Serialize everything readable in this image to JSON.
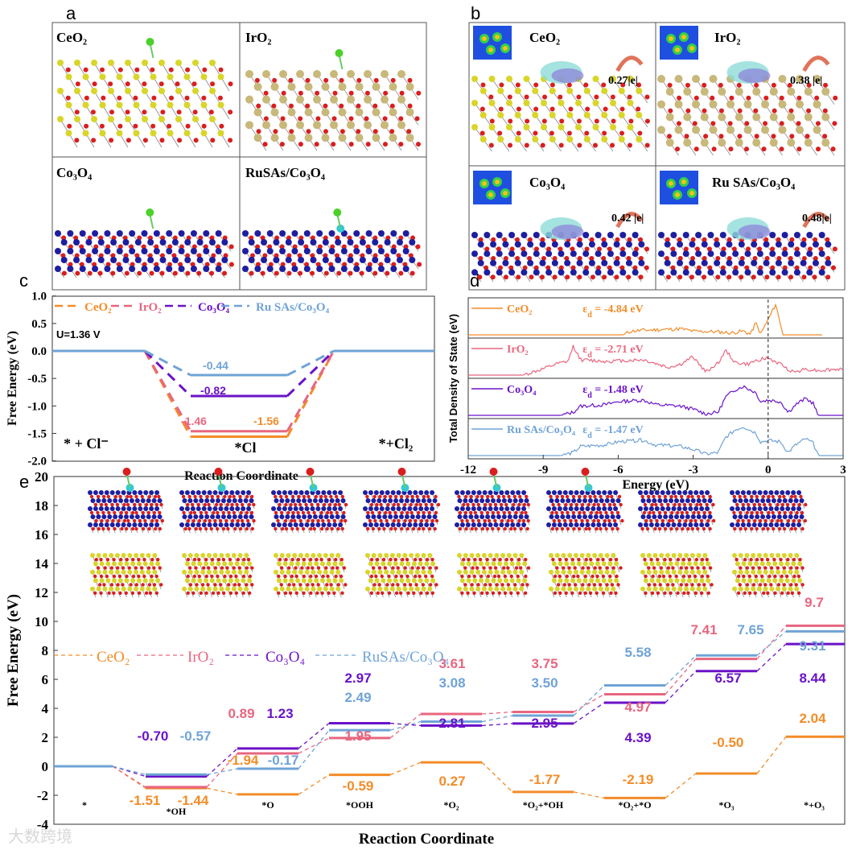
{
  "colors": {
    "CeO2": "#F28C28",
    "IrO2": "#E8667F",
    "Co3O4": "#6A12C8",
    "RuSAs": "#6FA3D6",
    "Ce": "#D9D52A",
    "Ir": "#C8B87A",
    "Co": "#1E1EA0",
    "O": "#D91E1E",
    "Ru": "#35C8D8",
    "Cl": "#4BD12A"
  },
  "panel_labels": [
    "a",
    "b",
    "c",
    "d",
    "e"
  ],
  "panel_a": {
    "titles": [
      "CeO₂",
      "IrO₂",
      "Co₃O₄",
      "RuSAs/Co₃O₄"
    ]
  },
  "panel_b": {
    "titles": [
      "CeO₂",
      "IrO₂",
      "Co₃O₄",
      "Ru SAs/Co₃O₄"
    ],
    "charges": [
      "0.27|e|",
      "0.38 |e|",
      "0.42 |e|",
      "0.48|e|"
    ]
  },
  "watermark": "大数跨境",
  "chart_data": [
    {
      "type": "line",
      "panel": "c",
      "title": "",
      "xlabel": "Reaction Coordinate",
      "ylabel": "Free Energy (eV)",
      "ylim": [
        -2.0,
        1.0
      ],
      "yticks": [
        "1.0",
        "0.5",
        "0.0",
        "-0.5",
        "-1.0",
        "-1.5",
        "-2.0"
      ],
      "ytick_values": [
        1.0,
        0.5,
        0.0,
        -0.5,
        -1.0,
        -1.5,
        -2.0
      ],
      "annotation": "U=1.36 V",
      "states": [
        "* + Cl⁻",
        "*Cl",
        "*+Cl₂"
      ],
      "legend": [
        "CeO₂",
        "IrO₂",
        "Co₃O₄",
        "Ru SAs/Co₃O₄"
      ],
      "legend_placement": "top",
      "series": [
        {
          "name": "CeO₂",
          "key": "CeO2",
          "values": [
            0,
            -1.56,
            0
          ],
          "label": "-1.56"
        },
        {
          "name": "IrO₂",
          "key": "IrO2",
          "values": [
            0,
            -1.46,
            0
          ],
          "label": "-1.46"
        },
        {
          "name": "Co₃O₄",
          "key": "Co3O4",
          "values": [
            0,
            -0.82,
            0
          ],
          "label": "-0.82"
        },
        {
          "name": "Ru SAs/Co₃O₄",
          "key": "RuSAs",
          "values": [
            0,
            -0.44,
            0
          ],
          "label": "-0.44"
        }
      ]
    },
    {
      "type": "line",
      "panel": "d",
      "xlabel": "Energy (eV)",
      "ylabel": "Total Density of State (eV)",
      "xlim": [
        -12,
        3
      ],
      "xticks": [
        "-12",
        "-9",
        "-6",
        "-3",
        "0",
        "3"
      ],
      "xtick_values": [
        -12,
        -9,
        -6,
        -3,
        0,
        3
      ],
      "fermi_level": 0,
      "series": [
        {
          "name": "CeO₂",
          "key": "CeO2",
          "eps_symbol": "ε",
          "eps_sub": "d",
          "eps_text": " = -4.84 eV",
          "points": [
            [
              -12,
              0
            ],
            [
              -5.8,
              0
            ],
            [
              -5.5,
              0.12
            ],
            [
              -5,
              0.15
            ],
            [
              -4,
              0.18
            ],
            [
              -3.5,
              0.2
            ],
            [
              -3,
              0.12
            ],
            [
              -2,
              0.1
            ],
            [
              -1.5,
              0.06
            ],
            [
              -1,
              0.12
            ],
            [
              -0.7,
              0.02
            ],
            [
              -0.5,
              0.4
            ],
            [
              -0.3,
              0.03
            ],
            [
              0,
              0.5
            ],
            [
              0.3,
              1.0
            ],
            [
              0.6,
              0
            ],
            [
              2.2,
              0
            ]
          ]
        },
        {
          "name": "IrO₂",
          "key": "IrO2",
          "eps_symbol": "ε",
          "eps_sub": "d",
          "eps_text": " = -2.71 eV",
          "points": [
            [
              -12,
              0
            ],
            [
              -9.8,
              0
            ],
            [
              -9,
              0.2
            ],
            [
              -8.5,
              0.35
            ],
            [
              -8,
              0.45
            ],
            [
              -7.8,
              0.95
            ],
            [
              -7.5,
              0.5
            ],
            [
              -6.5,
              0.45
            ],
            [
              -5,
              0.5
            ],
            [
              -4,
              0.25
            ],
            [
              -3.5,
              0.35
            ],
            [
              -3,
              0.6
            ],
            [
              -2.5,
              0.1
            ],
            [
              -2,
              0.4
            ],
            [
              -1.7,
              0.8
            ],
            [
              -1.3,
              0.4
            ],
            [
              -0.8,
              0.35
            ],
            [
              -0.4,
              0.5
            ],
            [
              0,
              0.55
            ],
            [
              0.5,
              0.35
            ],
            [
              1,
              0.1
            ],
            [
              1.5,
              0.2
            ],
            [
              2,
              0.15
            ],
            [
              3,
              0.2
            ]
          ]
        },
        {
          "name": "Co₃O₄",
          "key": "Co3O4",
          "eps_symbol": "ε",
          "eps_sub": "d",
          "eps_text": " = -1.48 eV",
          "points": [
            [
              -12,
              0
            ],
            [
              -8.3,
              0
            ],
            [
              -7.8,
              0.1
            ],
            [
              -7.5,
              0.3
            ],
            [
              -6.5,
              0.35
            ],
            [
              -6,
              0.45
            ],
            [
              -5,
              0.5
            ],
            [
              -4.5,
              0.35
            ],
            [
              -3.5,
              0.3
            ],
            [
              -3,
              0.2
            ],
            [
              -2.5,
              0.05
            ],
            [
              -2,
              0.1
            ],
            [
              -1.7,
              0.6
            ],
            [
              -1.3,
              0.85
            ],
            [
              -1,
              0.95
            ],
            [
              -0.5,
              0.75
            ],
            [
              -0.3,
              0.45
            ],
            [
              0,
              0.5
            ],
            [
              0.5,
              0.45
            ],
            [
              0.8,
              0.1
            ],
            [
              1.1,
              0.35
            ],
            [
              1.5,
              0.55
            ],
            [
              1.8,
              0.4
            ],
            [
              2,
              0
            ],
            [
              3,
              0
            ]
          ]
        },
        {
          "name": "Ru SAs/Co₃O₄",
          "key": "RuSAs",
          "eps_symbol": "ε",
          "eps_sub": "d",
          "eps_text": " = -1.47 eV",
          "points": [
            [
              -12,
              0
            ],
            [
              -8.3,
              0
            ],
            [
              -7.8,
              0.1
            ],
            [
              -7.5,
              0.3
            ],
            [
              -6.5,
              0.35
            ],
            [
              -6,
              0.45
            ],
            [
              -5,
              0.5
            ],
            [
              -4.5,
              0.35
            ],
            [
              -3.5,
              0.3
            ],
            [
              -3,
              0.2
            ],
            [
              -2.5,
              0.05
            ],
            [
              -2,
              0.1
            ],
            [
              -1.7,
              0.6
            ],
            [
              -1.3,
              0.85
            ],
            [
              -1,
              0.95
            ],
            [
              -0.5,
              0.75
            ],
            [
              -0.3,
              0.45
            ],
            [
              0,
              0.5
            ],
            [
              0.5,
              0.45
            ],
            [
              0.8,
              0.1
            ],
            [
              1.1,
              0.35
            ],
            [
              1.5,
              0.55
            ],
            [
              1.8,
              0.4
            ],
            [
              2,
              0
            ],
            [
              3,
              0
            ]
          ]
        }
      ]
    },
    {
      "type": "line",
      "panel": "e",
      "xlabel": "Reaction Coordinate",
      "ylabel": "Free Energy (eV)",
      "ylim": [
        -4,
        20
      ],
      "yticks": [
        "20",
        "18",
        "16",
        "14",
        "12",
        "10",
        "8",
        "6",
        "4",
        "2",
        "0",
        "-2",
        "-4"
      ],
      "ytick_values": [
        20,
        18,
        16,
        14,
        12,
        10,
        8,
        6,
        4,
        2,
        0,
        -2,
        -4
      ],
      "states": [
        "*",
        "*OH",
        "*O",
        "*OOH",
        "*O₂",
        "*O₂+*OH",
        "*O₂+*O",
        "*O₃",
        "*+O₃"
      ],
      "legend": [
        "CeO₂",
        "IrO₂",
        "Co₃O₄",
        "RuSAs/Co₃O₄"
      ],
      "legend_placement": "middle-left",
      "series": [
        {
          "name": "CeO₂",
          "key": "CeO2",
          "values": [
            0,
            -1.51,
            -1.94,
            -0.59,
            0.27,
            -1.77,
            -2.19,
            -0.5,
            2.04
          ]
        },
        {
          "name": "IrO₂",
          "key": "IrO2",
          "values": [
            0,
            -1.44,
            0.89,
            1.95,
            3.61,
            3.75,
            4.97,
            7.41,
            9.7
          ]
        },
        {
          "name": "Co₃O₄",
          "key": "Co3O4",
          "values": [
            0,
            -0.7,
            1.23,
            2.97,
            2.81,
            2.95,
            4.39,
            6.57,
            8.44
          ]
        },
        {
          "name": "RuSAs/Co₃O₄",
          "key": "RuSAs",
          "values": [
            0,
            -0.57,
            -0.17,
            2.49,
            3.08,
            3.5,
            5.58,
            7.65,
            9.31
          ]
        }
      ],
      "data_labels": [
        {
          "text": "-0.70",
          "key": "Co3O4"
        },
        {
          "text": "-0.57",
          "key": "RuSAs"
        },
        {
          "text": "-1.51",
          "key": "CeO2"
        },
        {
          "text": "-1.44",
          "key": "CeO2"
        },
        {
          "text": "0.89",
          "key": "IrO2"
        },
        {
          "text": "1.23",
          "key": "Co3O4"
        },
        {
          "text": "-1.94",
          "key": "CeO2"
        },
        {
          "text": "-0.17",
          "key": "RuSAs"
        },
        {
          "text": "2.97",
          "key": "Co3O4"
        },
        {
          "text": "2.49",
          "key": "RuSAs"
        },
        {
          "text": "1.95",
          "key": "IrO2"
        },
        {
          "text": "-0.59",
          "key": "CeO2"
        },
        {
          "text": "3.61",
          "key": "IrO2"
        },
        {
          "text": "3.08",
          "key": "RuSAs"
        },
        {
          "text": "2.81",
          "key": "Co3O4"
        },
        {
          "text": "0.27",
          "key": "CeO2"
        },
        {
          "text": "3.75",
          "key": "IrO2"
        },
        {
          "text": "3.50",
          "key": "RuSAs"
        },
        {
          "text": "2.95",
          "key": "Co3O4"
        },
        {
          "text": "-1.77",
          "key": "CeO2"
        },
        {
          "text": "5.58",
          "key": "RuSAs"
        },
        {
          "text": "4.97",
          "key": "IrO2"
        },
        {
          "text": "4.39",
          "key": "Co3O4"
        },
        {
          "text": "-2.19",
          "key": "CeO2"
        },
        {
          "text": "7.41",
          "key": "IrO2"
        },
        {
          "text": "7.65",
          "key": "RuSAs"
        },
        {
          "text": "6.57",
          "key": "Co3O4"
        },
        {
          "text": "-0.50",
          "key": "CeO2"
        },
        {
          "text": "9.7",
          "key": "IrO2"
        },
        {
          "text": "9.31",
          "key": "RuSAs"
        },
        {
          "text": "8.44",
          "key": "Co3O4"
        },
        {
          "text": "2.04",
          "key": "CeO2"
        }
      ]
    }
  ]
}
